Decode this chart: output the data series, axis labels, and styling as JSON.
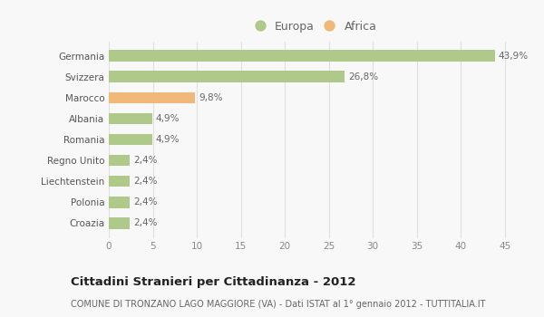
{
  "categories": [
    "Croazia",
    "Polonia",
    "Liechtenstein",
    "Regno Unito",
    "Romania",
    "Albania",
    "Marocco",
    "Svizzera",
    "Germania"
  ],
  "values": [
    2.4,
    2.4,
    2.4,
    2.4,
    4.9,
    4.9,
    9.8,
    26.8,
    43.9
  ],
  "labels": [
    "2,4%",
    "2,4%",
    "2,4%",
    "2,4%",
    "4,9%",
    "4,9%",
    "9,8%",
    "26,8%",
    "43,9%"
  ],
  "colors": [
    "#aec98a",
    "#aec98a",
    "#aec98a",
    "#aec98a",
    "#aec98a",
    "#aec98a",
    "#f0b97a",
    "#aec98a",
    "#aec98a"
  ],
  "europa_color": "#aec98a",
  "africa_color": "#f0b97a",
  "xlim": [
    0,
    47
  ],
  "xticks": [
    0,
    5,
    10,
    15,
    20,
    25,
    30,
    35,
    40,
    45
  ],
  "title": "Cittadini Stranieri per Cittadinanza - 2012",
  "subtitle": "COMUNE DI TRONZANO LAGO MAGGIORE (VA) - Dati ISTAT al 1° gennaio 2012 - TUTTITALIA.IT",
  "bg_color": "#f8f8f8",
  "grid_color": "#e0e0e0",
  "bar_height": 0.55
}
